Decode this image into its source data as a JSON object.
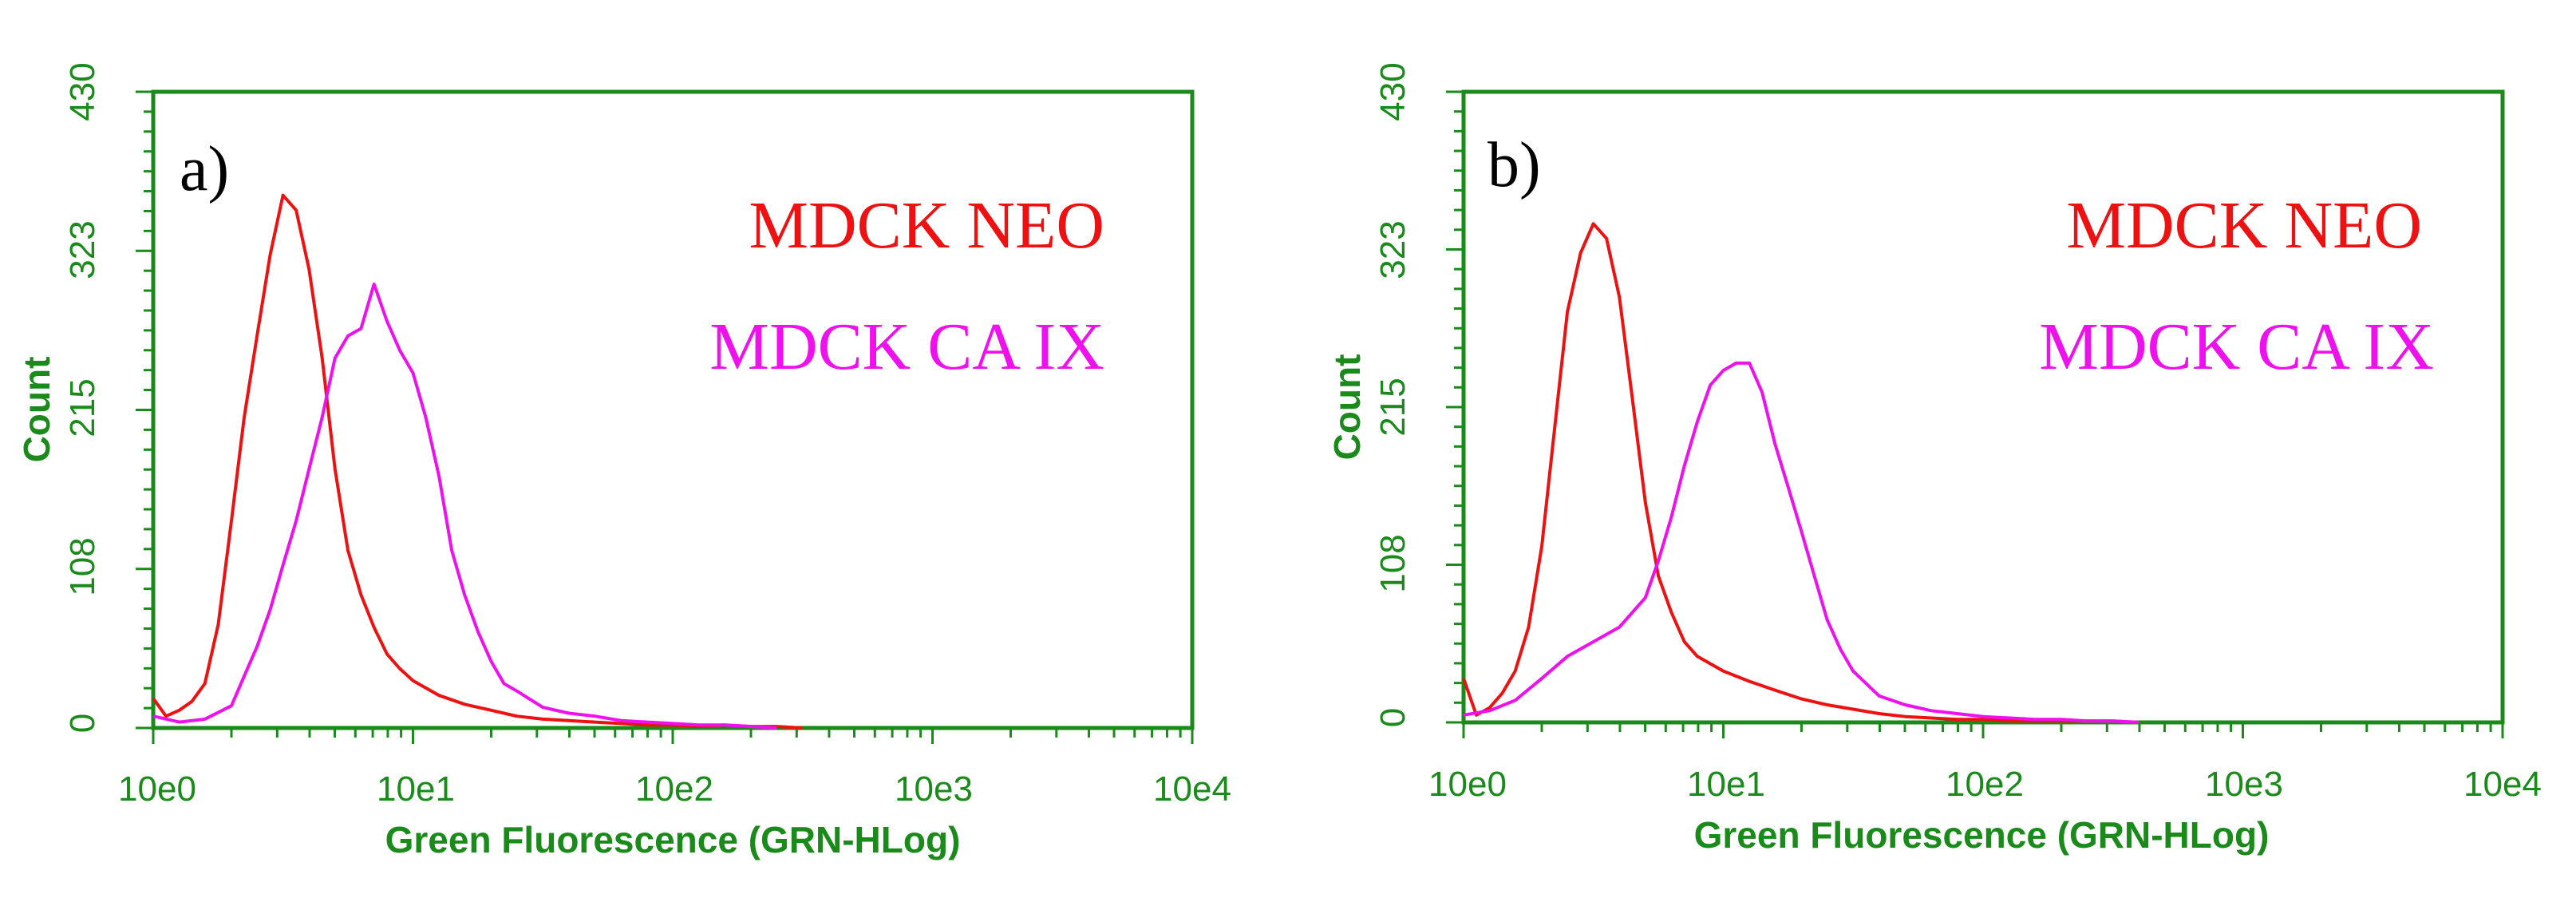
{
  "figure": {
    "colors": {
      "axis": "#1a8a1a",
      "series_neo": "#ee1111",
      "series_caix": "#ee11ee",
      "panel_label": "#000000"
    }
  },
  "chart_data": [
    {
      "type": "line",
      "panel_label": "a)",
      "xlabel": "Green Fluorescence (GRN-HLog)",
      "ylabel": "Count",
      "x_scale": "log",
      "xlim": [
        1,
        10000
      ],
      "ylim": [
        0,
        430
      ],
      "x_ticks": [
        "10e0",
        "10e1",
        "10e2",
        "10e3",
        "10e4"
      ],
      "y_ticks": [
        "0",
        "108",
        "215",
        "323",
        "430"
      ],
      "grid": false,
      "legend_position": "top-right",
      "series": [
        {
          "name": "MDCK NEO",
          "color": "#ee1111",
          "x": [
            1.0,
            1.12,
            1.26,
            1.41,
            1.58,
            1.78,
            2.0,
            2.24,
            2.51,
            2.82,
            3.16,
            3.55,
            3.98,
            4.47,
            5.01,
            5.62,
            6.31,
            7.08,
            7.94,
            8.91,
            10.0,
            12.6,
            15.8,
            20.0,
            25.1,
            31.6,
            39.8,
            50.1,
            63.1,
            79.4,
            100,
            126,
            158,
            200,
            251,
            316
          ],
          "y": [
            20,
            8,
            12,
            18,
            30,
            70,
            140,
            210,
            265,
            320,
            360,
            350,
            310,
            250,
            175,
            120,
            90,
            68,
            50,
            40,
            32,
            22,
            16,
            12,
            8,
            6,
            5,
            4,
            3,
            2,
            2,
            1,
            2,
            1,
            1,
            0
          ]
        },
        {
          "name": "MDCK CA IX",
          "color": "#ee11ee",
          "x": [
            1.0,
            1.26,
            1.58,
            2.0,
            2.24,
            2.51,
            2.82,
            3.16,
            3.55,
            3.98,
            4.47,
            5.01,
            5.62,
            6.31,
            7.08,
            7.94,
            8.91,
            10.0,
            11.2,
            12.6,
            14.1,
            15.8,
            17.8,
            20.0,
            22.4,
            25.1,
            31.6,
            39.8,
            50.1,
            63.1,
            79.4,
            100,
            126,
            158,
            200,
            251
          ],
          "y": [
            8,
            4,
            6,
            15,
            35,
            55,
            80,
            110,
            140,
            175,
            210,
            250,
            265,
            270,
            300,
            275,
            255,
            240,
            210,
            170,
            120,
            90,
            65,
            45,
            30,
            25,
            14,
            10,
            8,
            5,
            4,
            3,
            2,
            2,
            1,
            0
          ]
        }
      ]
    },
    {
      "type": "line",
      "panel_label": "b)",
      "xlabel": "Green Fluorescence (GRN-HLog)",
      "ylabel": "Count",
      "x_scale": "log",
      "xlim": [
        1,
        10000
      ],
      "ylim": [
        0,
        430
      ],
      "x_ticks": [
        "10e0",
        "10e1",
        "10e2",
        "10e3",
        "10e4"
      ],
      "y_ticks": [
        "0",
        "108",
        "215",
        "323",
        "430"
      ],
      "grid": false,
      "legend_position": "top-right",
      "series": [
        {
          "name": "MDCK NEO",
          "color": "#ee1111",
          "x": [
            1.0,
            1.12,
            1.26,
            1.41,
            1.58,
            1.78,
            2.0,
            2.24,
            2.51,
            2.82,
            3.16,
            3.55,
            3.98,
            4.47,
            5.01,
            5.62,
            6.31,
            7.08,
            7.94,
            8.91,
            10.0,
            12.6,
            15.8,
            20.0,
            25.1,
            31.6,
            39.8,
            50.1,
            63.1,
            79.4,
            100,
            126,
            158,
            200,
            251,
            316,
            398
          ],
          "y": [
            30,
            5,
            10,
            20,
            35,
            65,
            120,
            200,
            280,
            320,
            340,
            330,
            290,
            220,
            150,
            100,
            75,
            55,
            45,
            40,
            35,
            28,
            22,
            16,
            12,
            9,
            6,
            4,
            3,
            2,
            2,
            1,
            1,
            1,
            1,
            1,
            0
          ]
        },
        {
          "name": "MDCK CA IX",
          "color": "#ee11ee",
          "x": [
            1.0,
            1.26,
            1.58,
            2.0,
            2.51,
            3.16,
            3.98,
            5.01,
            5.62,
            6.31,
            7.08,
            7.94,
            8.91,
            10.0,
            11.2,
            12.6,
            14.1,
            15.8,
            17.8,
            20.0,
            22.4,
            25.1,
            28.2,
            31.6,
            39.8,
            50.1,
            63.1,
            79.4,
            100,
            126,
            158,
            200,
            251,
            316,
            398
          ],
          "y": [
            5,
            8,
            15,
            30,
            45,
            55,
            65,
            85,
            110,
            140,
            175,
            205,
            230,
            240,
            245,
            245,
            225,
            190,
            160,
            130,
            100,
            70,
            50,
            35,
            18,
            12,
            8,
            6,
            4,
            3,
            2,
            2,
            1,
            1,
            0
          ]
        }
      ]
    }
  ]
}
